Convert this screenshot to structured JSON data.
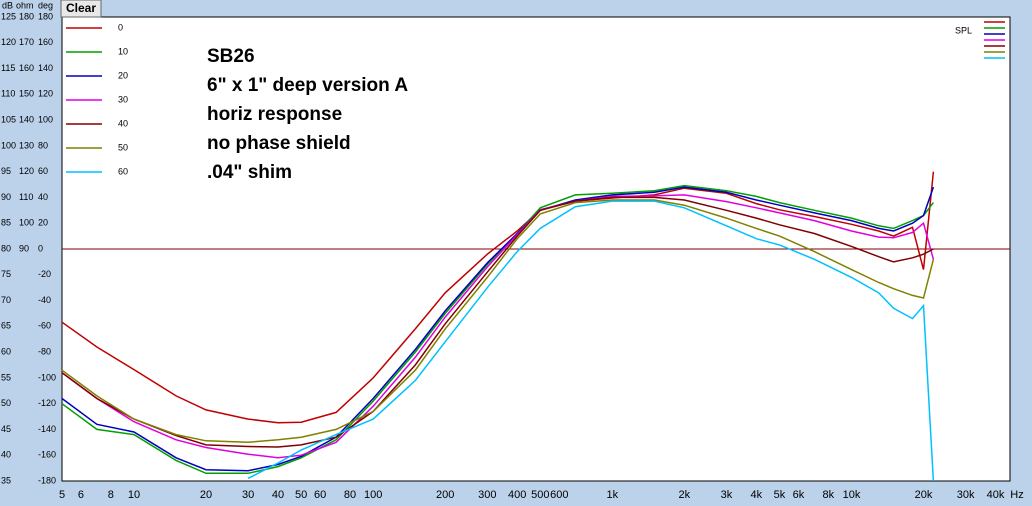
{
  "button": "Clear",
  "axis_headers": [
    "dB",
    "ohm",
    "deg"
  ],
  "chart_data": {
    "type": "line",
    "annotations": [
      "SB26",
      "6\" x 1\" deep version A",
      "horiz response",
      "no phase shield",
      ".04\" shim"
    ],
    "spl_label": "SPL",
    "x_label": "Hz",
    "log_x": true,
    "grid": true,
    "x": [
      5,
      7,
      10,
      15,
      20,
      30,
      40,
      50,
      70,
      100,
      150,
      200,
      300,
      400,
      500,
      700,
      1000,
      1500,
      2000,
      3000,
      4000,
      5000,
      7000,
      10000,
      13000,
      15000,
      18000,
      20000,
      22000
    ],
    "xlim": [
      5,
      46000
    ],
    "xticks": [
      5,
      6,
      8,
      10,
      20,
      30,
      40,
      50,
      60,
      80,
      100,
      200,
      300,
      400,
      500,
      600,
      {
        "value": 1000,
        "label": "1k"
      },
      {
        "value": 2000,
        "label": "2k"
      },
      {
        "value": 3000,
        "label": "3k"
      },
      {
        "value": 4000,
        "label": "4k"
      },
      {
        "value": 5000,
        "label": "5k"
      },
      {
        "value": 6000,
        "label": "6k"
      },
      {
        "value": 8000,
        "label": "8k"
      },
      {
        "value": 10000,
        "label": "10k"
      },
      {
        "value": 20000,
        "label": "20k"
      },
      {
        "value": 30000,
        "label": "30k"
      },
      {
        "value": 40000,
        "label": "40k"
      }
    ],
    "ylim": [
      35,
      125
    ],
    "yticks": [
      35,
      40,
      45,
      50,
      55,
      60,
      65,
      70,
      75,
      80,
      85,
      90,
      95,
      100,
      105,
      110,
      115,
      120,
      125
    ],
    "y2lim": [
      0,
      180
    ],
    "y2ticks": [
      90,
      100,
      110,
      120,
      130,
      140,
      150,
      160,
      170,
      180
    ],
    "y3lim": [
      -180,
      180
    ],
    "y3ticks": [
      -180,
      -160,
      -140,
      -120,
      -100,
      -80,
      -60,
      -40,
      -20,
      0,
      20,
      40,
      60,
      80,
      100,
      120,
      140,
      160,
      180
    ],
    "phase_zero_line": {
      "value": 0,
      "color": "#800000"
    },
    "series": [
      {
        "name": "0",
        "color": "#c00000",
        "values": [
          65.8,
          61,
          56.6,
          51.5,
          48.8,
          47,
          46.3,
          46.4,
          48.3,
          55,
          64.5,
          71.5,
          79,
          83.5,
          87.6,
          89.3,
          89.9,
          90.5,
          91.8,
          90.8,
          88.8,
          87.6,
          86.3,
          84.8,
          83.5,
          82.5,
          84.2,
          76,
          95
        ]
      },
      {
        "name": "10",
        "color": "#00a000",
        "values": [
          50,
          45,
          44,
          39,
          36.5,
          36.5,
          37.8,
          39.5,
          43,
          50.5,
          60,
          67.5,
          77,
          83,
          88,
          90.5,
          90.8,
          91.3,
          92.3,
          91.3,
          90.2,
          89,
          87.5,
          86,
          84.5,
          84,
          85.5,
          86.5,
          89
        ]
      },
      {
        "name": "20",
        "color": "#0000c0",
        "values": [
          51,
          46,
          44.5,
          39.5,
          37.2,
          37,
          38.2,
          39.8,
          43.5,
          51,
          60.5,
          68,
          77.3,
          83,
          87.5,
          89.5,
          90.5,
          91,
          92,
          91,
          89.5,
          88.5,
          87,
          85.5,
          84,
          83.5,
          85,
          86.5,
          92
        ]
      },
      {
        "name": "30",
        "color": "#e000e0",
        "values": [
          56,
          51,
          46.5,
          43,
          41.5,
          40.2,
          39.5,
          40,
          42.5,
          49.5,
          59,
          66.8,
          76.5,
          82.8,
          87.6,
          89.3,
          90.2,
          90.3,
          90.5,
          89.2,
          88,
          87,
          85.5,
          83.5,
          82.3,
          82.2,
          83.2,
          85,
          78
        ]
      },
      {
        "name": "40",
        "color": "#800000",
        "values": [
          56,
          51,
          47,
          43.8,
          42,
          41.7,
          41.6,
          42,
          43.5,
          48.5,
          57.5,
          65.5,
          75.5,
          82.5,
          87.5,
          89.3,
          90,
          90,
          89.5,
          87.5,
          86,
          84.7,
          83,
          80.5,
          78.5,
          77.5,
          78.3,
          79,
          80
        ]
      },
      {
        "name": "50",
        "color": "#808000",
        "values": [
          56.5,
          51.5,
          47,
          44,
          42.8,
          42.5,
          43,
          43.5,
          45,
          48.5,
          56.5,
          64.5,
          74.5,
          82,
          86.8,
          89,
          89.5,
          89.5,
          88.5,
          86,
          84,
          82.5,
          79.5,
          76,
          73.5,
          72.3,
          71,
          70.5,
          78
        ]
      },
      {
        "name": "60",
        "color": "#00c0ff",
        "values": [
          null,
          null,
          null,
          null,
          null,
          35.5,
          38.5,
          41,
          44,
          47,
          54.5,
          62,
          72.5,
          79.5,
          84,
          88.2,
          89.3,
          89.3,
          88,
          84.5,
          82,
          80.8,
          78,
          74.5,
          71.5,
          68.5,
          66.5,
          69,
          35
        ]
      }
    ]
  }
}
